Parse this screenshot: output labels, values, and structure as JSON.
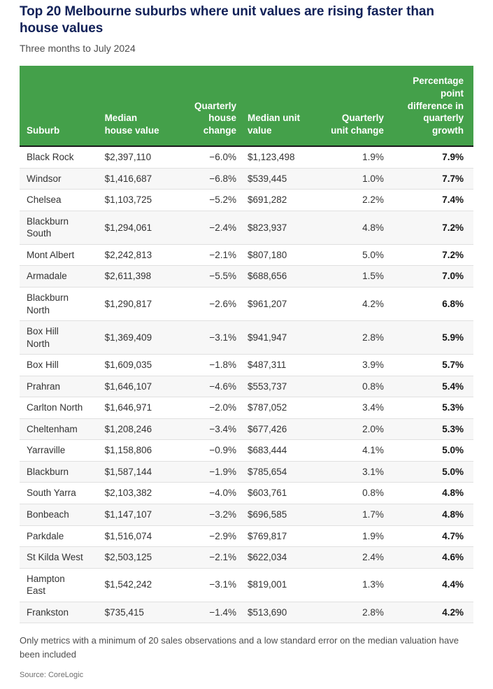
{
  "page": {
    "title": "Top 20 Melbourne suburbs where unit values are rising faster than house values",
    "subtitle": "Three months to July 2024",
    "footnote": "Only metrics with a minimum of 20 sales observations and a low standard error on the median valuation have been included",
    "source": "Source: CoreLogic"
  },
  "colors": {
    "header_bg": "#44a04a",
    "header_text": "#ffffff",
    "header_divider": "#1a1a1a",
    "title_text": "#112158",
    "subtitle_text": "#4d4d4d",
    "body_text": "#333333",
    "stripe_bg": "#f7f7f7",
    "row_border": "#e0e0e0",
    "source_text": "#6e6e6e"
  },
  "chart_data": {
    "type": "table",
    "title": "Top 20 Melbourne suburbs where unit values are rising faster than house values",
    "subtitle": "Three months to July 2024",
    "columns": [
      "Suburb",
      "Median house value",
      "Quarterly house change",
      "Median unit value",
      "Quarterly unit change",
      "Percentage point difference in quarterly growth"
    ],
    "rows": [
      [
        "Black Rock",
        "$2,397,110",
        "−6.0%",
        "$1,123,498",
        "1.9%",
        "7.9%"
      ],
      [
        "Windsor",
        "$1,416,687",
        "−6.8%",
        "$539,445",
        "1.0%",
        "7.7%"
      ],
      [
        "Chelsea",
        "$1,103,725",
        "−5.2%",
        "$691,282",
        "2.2%",
        "7.4%"
      ],
      [
        "Blackburn\nSouth",
        "$1,294,061",
        "−2.4%",
        "$823,937",
        "4.8%",
        "7.2%"
      ],
      [
        "Mont Albert",
        "$2,242,813",
        "−2.1%",
        "$807,180",
        "5.0%",
        "7.2%"
      ],
      [
        "Armadale",
        "$2,611,398",
        "−5.5%",
        "$688,656",
        "1.5%",
        "7.0%"
      ],
      [
        "Blackburn\nNorth",
        "$1,290,817",
        "−2.6%",
        "$961,207",
        "4.2%",
        "6.8%"
      ],
      [
        "Box Hill\nNorth",
        "$1,369,409",
        "−3.1%",
        "$941,947",
        "2.8%",
        "5.9%"
      ],
      [
        "Box Hill",
        "$1,609,035",
        "−1.8%",
        "$487,311",
        "3.9%",
        "5.7%"
      ],
      [
        "Prahran",
        "$1,646,107",
        "−4.6%",
        "$553,737",
        "0.8%",
        "5.4%"
      ],
      [
        "Carlton North",
        "$1,646,971",
        "−2.0%",
        "$787,052",
        "3.4%",
        "5.3%"
      ],
      [
        "Cheltenham",
        "$1,208,246",
        "−3.4%",
        "$677,426",
        "2.0%",
        "5.3%"
      ],
      [
        "Yarraville",
        "$1,158,806",
        "−0.9%",
        "$683,444",
        "4.1%",
        "5.0%"
      ],
      [
        "Blackburn",
        "$1,587,144",
        "−1.9%",
        "$785,654",
        "3.1%",
        "5.0%"
      ],
      [
        "South Yarra",
        "$2,103,382",
        "−4.0%",
        "$603,761",
        "0.8%",
        "4.8%"
      ],
      [
        "Bonbeach",
        "$1,147,107",
        "−3.2%",
        "$696,585",
        "1.7%",
        "4.8%"
      ],
      [
        "Parkdale",
        "$1,516,074",
        "−2.9%",
        "$769,817",
        "1.9%",
        "4.7%"
      ],
      [
        "St Kilda West",
        "$2,503,125",
        "−2.1%",
        "$622,034",
        "2.4%",
        "4.6%"
      ],
      [
        "Hampton\nEast",
        "$1,542,242",
        "−3.1%",
        "$819,001",
        "1.3%",
        "4.4%"
      ],
      [
        "Frankston",
        "$735,415",
        "−1.4%",
        "$513,690",
        "2.8%",
        "4.2%"
      ]
    ],
    "column_alignments": [
      "left",
      "left",
      "right",
      "left",
      "right",
      "right"
    ],
    "notes": {
      "footnote": "Only metrics with a minimum of 20 sales observations and a low standard error on the median valuation have been included",
      "source": "Source: CoreLogic"
    }
  }
}
